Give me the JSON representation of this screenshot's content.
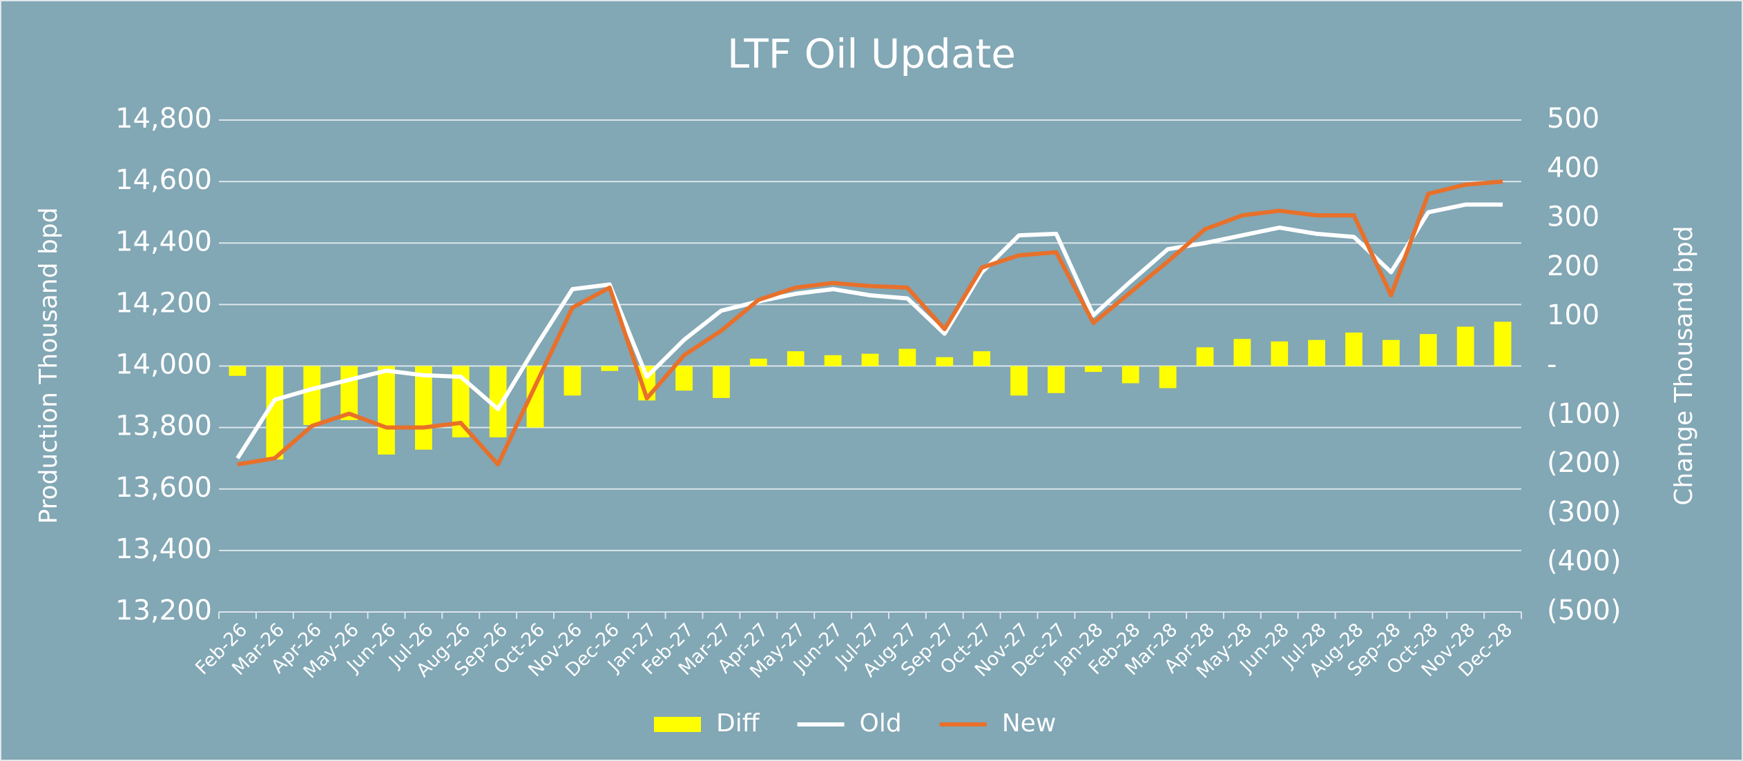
{
  "chart_data": {
    "type": "combo",
    "title": "LTF Oil Update",
    "y_label": "Production Thousand bpd",
    "y2_label": "Change Thousand bpd",
    "categories": [
      "Feb-26",
      "Mar-26",
      "Apr-26",
      "May-26",
      "Jun-26",
      "Jul-26",
      "Aug-26",
      "Sep-26",
      "Oct-26",
      "Nov-26",
      "Dec-26",
      "Jan-27",
      "Feb-27",
      "Mar-27",
      "Apr-27",
      "May-27",
      "Jun-27",
      "Jul-27",
      "Aug-27",
      "Sep-27",
      "Oct-27",
      "Nov-27",
      "Dec-27",
      "Jan-28",
      "Feb-28",
      "Mar-28",
      "Apr-28",
      "May-28",
      "Jun-28",
      "Jul-28",
      "Aug-28",
      "Sep-28",
      "Oct-28",
      "Nov-28",
      "Dec-28"
    ],
    "series": [
      {
        "name": "Diff",
        "type": "bar",
        "axis": "y2",
        "color": "#ffff00",
        "values": [
          -20,
          -190,
          -120,
          -110,
          -180,
          -170,
          -145,
          -145,
          -125,
          -60,
          -10,
          -70,
          -50,
          -65,
          15,
          30,
          22,
          25,
          35,
          18,
          30,
          -60,
          -55,
          -12,
          -35,
          -45,
          38,
          55,
          50,
          53,
          68,
          53,
          65,
          80,
          90
        ]
      },
      {
        "name": "Old",
        "type": "line",
        "color": "#ffffff",
        "values": [
          13700,
          13890,
          13925,
          13955,
          13985,
          13970,
          13965,
          13860,
          14060,
          14250,
          14265,
          13965,
          14085,
          14180,
          14210,
          14235,
          14250,
          14230,
          14220,
          14105,
          14305,
          14425,
          14430,
          14165,
          14275,
          14380,
          14400,
          14425,
          14450,
          14430,
          14420,
          14305,
          14500,
          14525,
          14525
        ]
      },
      {
        "name": "New",
        "type": "line",
        "color": "#e8702a",
        "values": [
          13680,
          13700,
          13805,
          13845,
          13800,
          13800,
          13815,
          13680,
          13935,
          14190,
          14255,
          13895,
          14035,
          14115,
          14215,
          14255,
          14270,
          14260,
          14255,
          14120,
          14320,
          14360,
          14370,
          14140,
          14240,
          14340,
          14445,
          14490,
          14505,
          14490,
          14490,
          14230,
          14560,
          14590,
          14600
        ]
      }
    ],
    "ylim": [
      13200,
      14800
    ],
    "yticks": [
      {
        "value": 13200,
        "label": "13,200"
      },
      {
        "value": 13400,
        "label": "13,400"
      },
      {
        "value": 13600,
        "label": "13,600"
      },
      {
        "value": 13800,
        "label": "13,800"
      },
      {
        "value": 14000,
        "label": "14,000"
      },
      {
        "value": 14200,
        "label": "14,200"
      },
      {
        "value": 14400,
        "label": "14,400"
      },
      {
        "value": 14600,
        "label": "14,600"
      },
      {
        "value": 14800,
        "label": "14,800"
      }
    ],
    "y2lim": [
      -500,
      500
    ],
    "y2ticks": [
      {
        "value": -500,
        "label": "(500)"
      },
      {
        "value": -400,
        "label": "(400)"
      },
      {
        "value": -300,
        "label": "(300)"
      },
      {
        "value": -200,
        "label": "(200)"
      },
      {
        "value": -100,
        "label": "(100)"
      },
      {
        "value": 0,
        "label": "-"
      },
      100,
      200,
      300,
      400,
      500
    ],
    "grid": true,
    "legend": "bottom"
  }
}
